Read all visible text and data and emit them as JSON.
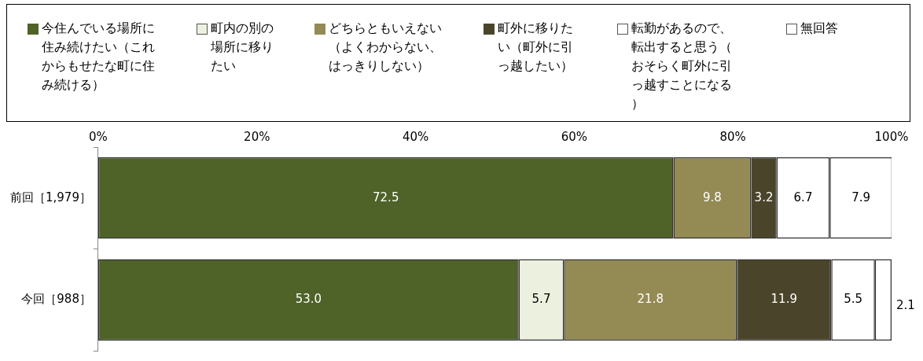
{
  "chart_data": {
    "type": "bar",
    "orientation": "horizontal",
    "stacked": true,
    "categories": [
      "前回［1,979］",
      "今回［988］"
    ],
    "series": [
      {
        "name": "今住んでいる場所に住み続けたい（これからもせたな町に住み続ける）",
        "color": "#4f6228",
        "values": [
          72.5,
          53.0
        ],
        "value_labels": [
          "72.5",
          "53.0"
        ]
      },
      {
        "name": "町内の別の場所に移りたい",
        "color": "#ebf1de",
        "values": [
          null,
          5.7
        ],
        "value_labels": [
          null,
          "5.7"
        ]
      },
      {
        "name": "どちらともいえない（よくわからない、はっきりしない）",
        "color": "#948a54",
        "values": [
          9.8,
          21.8
        ],
        "value_labels": [
          "9.8",
          "21.8"
        ]
      },
      {
        "name": "町外に移りたい（町外に引っ越したい）",
        "color": "#4a452a",
        "values": [
          3.2,
          11.9
        ],
        "value_labels": [
          "3.2",
          "11.9"
        ]
      },
      {
        "name": "転勤があるので、転出すると思う（おそらく町外に引っ越すことになる）",
        "color": "#ffffff",
        "values": [
          6.7,
          5.5
        ],
        "value_labels": [
          "6.7",
          "5.5"
        ]
      },
      {
        "name": "無回答",
        "color": "#ffffff",
        "values": [
          7.9,
          2.1
        ],
        "value_labels": [
          "7.9",
          "2.1"
        ]
      }
    ],
    "xlim": [
      0,
      100
    ],
    "xticks": [
      {
        "value": 0,
        "label": "0%"
      },
      {
        "value": 20,
        "label": "20%"
      },
      {
        "value": 40,
        "label": "40%"
      },
      {
        "value": 60,
        "label": "60%"
      },
      {
        "value": 80,
        "label": "80%"
      },
      {
        "value": 100,
        "label": "100%"
      }
    ],
    "grid": false,
    "legend": "top"
  }
}
